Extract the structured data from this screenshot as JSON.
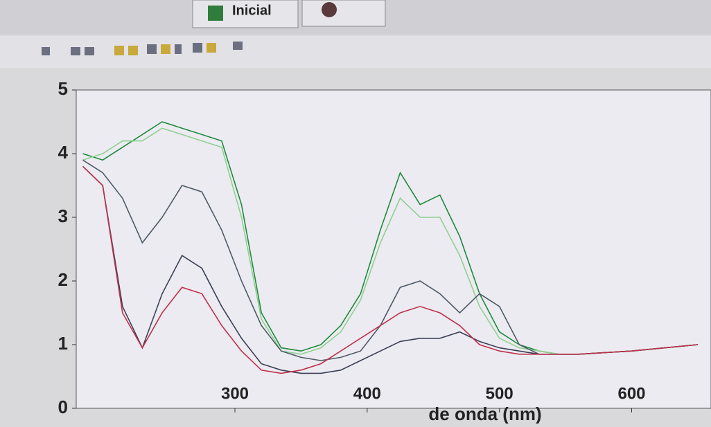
{
  "header": {
    "button": "Inicial"
  },
  "chart_data": {
    "type": "line",
    "x_label": "de onda (nm)",
    "x": [
      185,
      200,
      215,
      230,
      245,
      260,
      275,
      290,
      305,
      320,
      335,
      350,
      365,
      380,
      395,
      410,
      425,
      440,
      455,
      470,
      485,
      500,
      515,
      530,
      545,
      560,
      600,
      650
    ],
    "series": [
      {
        "color": "#1f8a3c",
        "values": [
          4.0,
          3.9,
          4.1,
          4.3,
          4.5,
          4.4,
          4.3,
          4.2,
          3.2,
          1.5,
          0.95,
          0.9,
          1.0,
          1.3,
          1.8,
          2.8,
          3.7,
          3.2,
          3.35,
          2.7,
          1.8,
          1.2,
          1.0,
          0.9,
          0.85,
          0.85,
          0.9,
          1.0
        ]
      },
      {
        "color": "#8fd08f",
        "values": [
          3.9,
          4.0,
          4.2,
          4.2,
          4.4,
          4.3,
          4.2,
          4.1,
          3.0,
          1.4,
          0.9,
          0.85,
          0.95,
          1.2,
          1.7,
          2.6,
          3.3,
          3.0,
          3.0,
          2.4,
          1.6,
          1.1,
          0.95,
          0.9,
          0.85,
          0.85,
          0.9,
          1.0
        ]
      },
      {
        "color": "#4e5a66",
        "values": [
          3.9,
          3.7,
          3.3,
          2.6,
          3.0,
          3.5,
          3.4,
          2.8,
          2.0,
          1.3,
          0.9,
          0.8,
          0.75,
          0.8,
          0.9,
          1.3,
          1.9,
          2.0,
          1.8,
          1.5,
          1.8,
          1.6,
          1.0,
          0.85,
          0.85,
          0.85,
          0.9,
          1.0
        ]
      },
      {
        "color": "#3a3f55",
        "values": [
          3.8,
          3.5,
          1.6,
          0.95,
          1.8,
          2.4,
          2.2,
          1.6,
          1.1,
          0.7,
          0.6,
          0.55,
          0.55,
          0.6,
          0.75,
          0.9,
          1.05,
          1.1,
          1.1,
          1.2,
          1.05,
          0.95,
          0.9,
          0.85,
          0.85,
          0.85,
          0.9,
          1.0
        ]
      },
      {
        "color": "#c0304a",
        "values": [
          3.8,
          3.5,
          1.5,
          0.95,
          1.5,
          1.9,
          1.8,
          1.3,
          0.9,
          0.6,
          0.55,
          0.6,
          0.7,
          0.9,
          1.1,
          1.3,
          1.5,
          1.6,
          1.5,
          1.3,
          1.0,
          0.9,
          0.85,
          0.85,
          0.85,
          0.85,
          0.9,
          1.0
        ]
      }
    ],
    "xlim": [
      180,
      660
    ],
    "xticks": [
      300,
      400,
      500,
      600
    ],
    "ylim": [
      0,
      5
    ],
    "yticks": [
      0,
      1,
      2,
      3,
      4,
      5
    ],
    "grid": false
  }
}
